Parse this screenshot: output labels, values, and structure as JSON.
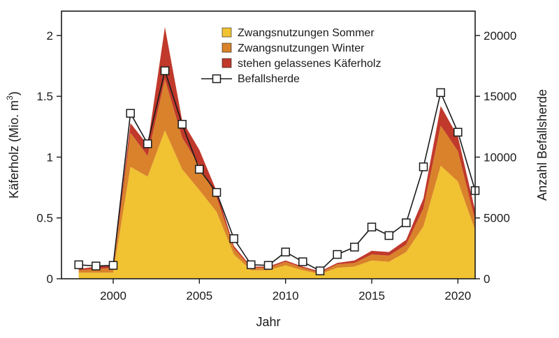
{
  "chart_data": {
    "type": "area",
    "xlabel": "Jahr",
    "ylabel_left": "Käferholz (Mio. m",
    "ylabel_left_sup": "3",
    "ylabel_left_close": ")",
    "ylabel_right": "Anzahl Befallsherde",
    "xlim": [
      1997.0,
      2021.0
    ],
    "ylim_left": [
      0,
      2.2
    ],
    "ylim_right": [
      0,
      22000
    ],
    "x_ticks": [
      2000,
      2005,
      2010,
      2015,
      2020
    ],
    "y_left_ticks": [
      0,
      0.5,
      1,
      1.5,
      2
    ],
    "y_left_tick_labels": [
      "0",
      "0.5",
      "1",
      "1.5",
      "2"
    ],
    "y_right_ticks": [
      0,
      5000,
      10000,
      15000,
      20000
    ],
    "y_right_tick_labels": [
      "0",
      "5000",
      "10000",
      "15000",
      "20000"
    ],
    "x": [
      1998,
      1999,
      2000,
      2001,
      2002,
      2003,
      2004,
      2005,
      2006,
      2007,
      2008,
      2009,
      2010,
      2011,
      2012,
      2013,
      2014,
      2015,
      2016,
      2017,
      2018,
      2019,
      2020,
      2021
    ],
    "stacked_series": [
      {
        "name": "Zwangsnutzungen Sommer",
        "color": "#f1c232",
        "values": [
          0.05,
          0.05,
          0.05,
          0.92,
          0.84,
          1.22,
          0.9,
          0.73,
          0.55,
          0.2,
          0.07,
          0.07,
          0.11,
          0.07,
          0.04,
          0.09,
          0.1,
          0.15,
          0.14,
          0.22,
          0.43,
          0.93,
          0.8,
          0.4
        ]
      },
      {
        "name": "Zwangsnutzungen Winter",
        "color": "#d9822b",
        "values": [
          0.02,
          0.03,
          0.04,
          0.28,
          0.17,
          0.42,
          0.26,
          0.2,
          0.12,
          0.05,
          0.02,
          0.02,
          0.03,
          0.02,
          0.01,
          0.03,
          0.03,
          0.05,
          0.05,
          0.06,
          0.15,
          0.33,
          0.25,
          0.08
        ]
      },
      {
        "name": "stehen gelassenes Käferholz",
        "color": "#c0392b",
        "values": [
          0.01,
          0.02,
          0.02,
          0.08,
          0.09,
          0.43,
          0.14,
          0.13,
          0.05,
          0.02,
          0.01,
          0.01,
          0.01,
          0.01,
          0.01,
          0.01,
          0.02,
          0.03,
          0.03,
          0.04,
          0.08,
          0.16,
          0.12,
          0.08
        ]
      }
    ],
    "line_series": {
      "name": "Befallsherde",
      "axis": "right",
      "values": [
        1150,
        1050,
        1100,
        13600,
        11100,
        17100,
        12700,
        9000,
        7100,
        3300,
        1150,
        1100,
        2200,
        1400,
        650,
        2000,
        2600,
        4250,
        3550,
        4600,
        9200,
        15300,
        12050,
        7250
      ]
    },
    "legend": {
      "position": "top-center",
      "entries": [
        "Zwangsnutzungen Sommer",
        "Zwangsnutzungen Winter",
        "stehen gelassenes Käferholz",
        "Befallsherde"
      ]
    },
    "grid": false
  }
}
